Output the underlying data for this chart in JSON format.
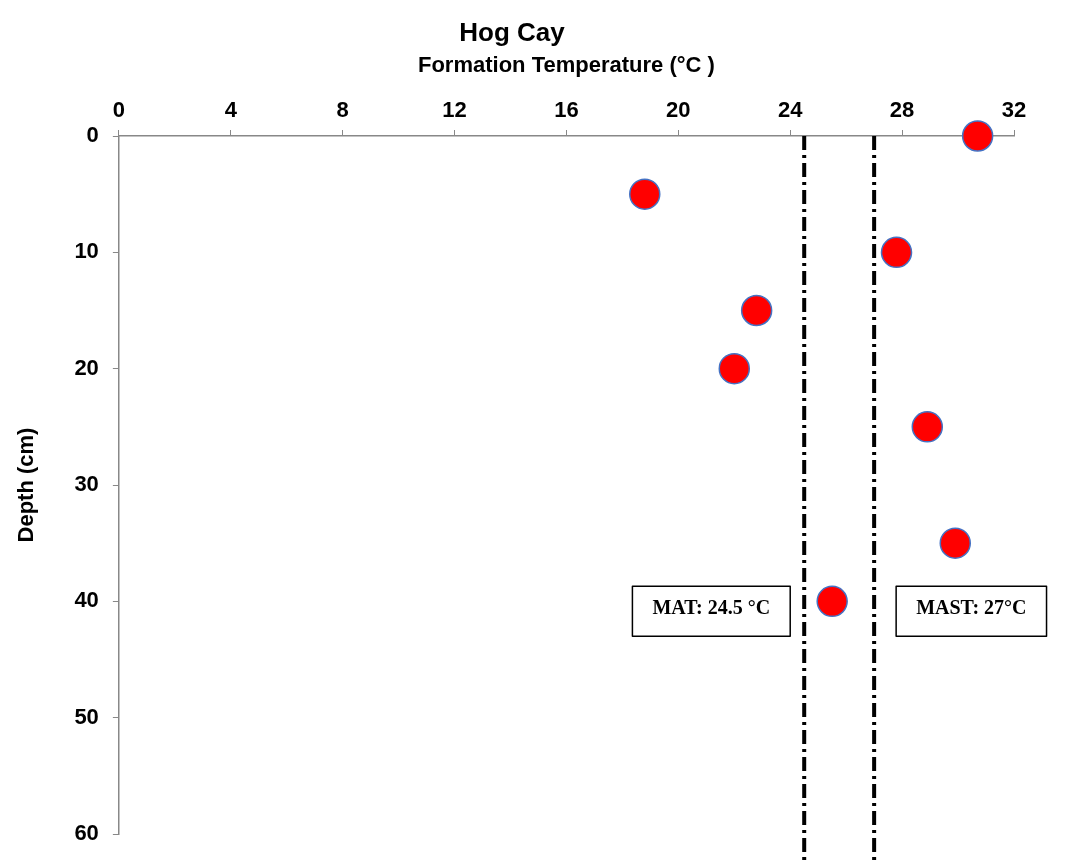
{
  "chart_data": {
    "type": "scatter",
    "title": "Hog Cay",
    "xlabel": "Formation Temperature (°C )",
    "ylabel": "Depth (cm)",
    "x": [
      30.7,
      18.8,
      27.8,
      22.8,
      22.0,
      28.9,
      29.9,
      25.5
    ],
    "series": [
      {
        "color": "#ff0000",
        "values": [
          0,
          5,
          10,
          15,
          20,
          25,
          35,
          40
        ]
      }
    ],
    "xlim": [
      0,
      32
    ],
    "xticks": [
      0,
      4,
      8,
      12,
      16,
      20,
      24,
      28,
      32
    ],
    "ylim": [
      60,
      0
    ],
    "yticks": [
      0,
      10,
      20,
      30,
      40,
      50,
      60
    ],
    "marker": "circle",
    "grid": false,
    "legend": false,
    "ref_lines": [
      {
        "axis": "x",
        "value": 24.5,
        "label": "MAT: 24.5 °C",
        "color": "#000000",
        "line_style": "dashed"
      },
      {
        "axis": "x",
        "value": 27,
        "label": "MAST: 27°C",
        "color": "#000000",
        "line_style": "dashed"
      }
    ]
  }
}
